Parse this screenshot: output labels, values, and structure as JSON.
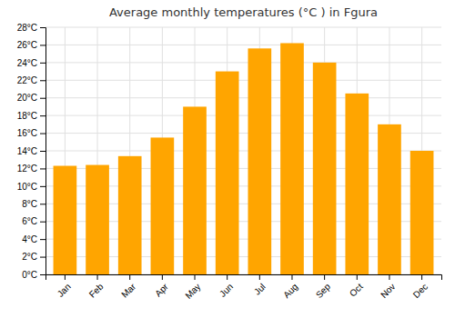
{
  "chart_data": {
    "type": "bar",
    "title": "Average monthly temperatures (°C ) in Fgura",
    "categories": [
      "Jan",
      "Feb",
      "Mar",
      "Apr",
      "May",
      "Jun",
      "Jul",
      "Aug",
      "Sep",
      "Oct",
      "Nov",
      "Dec"
    ],
    "values": [
      12.3,
      12.4,
      13.4,
      15.5,
      19.0,
      23.0,
      25.6,
      26.2,
      24.0,
      20.5,
      17.0,
      14.0
    ],
    "color": "#FFA500",
    "ylim": [
      0,
      28
    ],
    "yticks": [
      {
        "value": 0,
        "label": "0°C"
      },
      {
        "value": 2,
        "label": "2°C"
      },
      {
        "value": 4,
        "label": "4°C"
      },
      {
        "value": 6,
        "label": "6°C"
      },
      {
        "value": 8,
        "label": "8°C"
      },
      {
        "value": 10,
        "label": "10°C"
      },
      {
        "value": 12,
        "label": "12°C"
      },
      {
        "value": 14,
        "label": "14°C"
      },
      {
        "value": 16,
        "label": "16°C"
      },
      {
        "value": 18,
        "label": "18°C"
      },
      {
        "value": 20,
        "label": "20°C"
      },
      {
        "value": 22,
        "label": "22°C"
      },
      {
        "value": 24,
        "label": "24°C"
      },
      {
        "value": 26,
        "label": "26°C"
      },
      {
        "value": 28,
        "label": "28°C"
      }
    ],
    "grid": true
  }
}
